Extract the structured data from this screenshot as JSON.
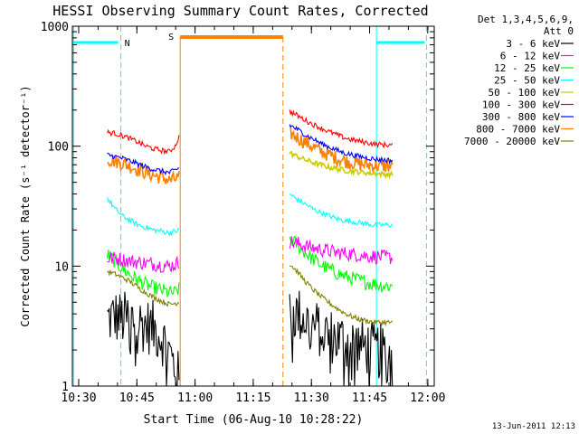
{
  "chart_data": {
    "type": "line",
    "title": "HESSI Observing Summary Count Rates, Corrected",
    "xlabel": "Start Time (06-Aug-10 10:28:22)",
    "ylabel": "Corrected Count Rate (s⁻¹ detector⁻¹)",
    "xaxis_units": "minutes after 10:28:22 UT",
    "xlim": [
      0,
      93.3
    ],
    "ylim": [
      1,
      1000
    ],
    "yscale": "log",
    "x_tick_labels": [
      "10:30",
      "10:45",
      "11:00",
      "11:15",
      "11:30",
      "11:45",
      "12:00"
    ],
    "x_tick_values": [
      1.63,
      16.63,
      31.63,
      46.63,
      61.63,
      76.63,
      91.63
    ],
    "y_tick_labels": [
      "1",
      "10",
      "100",
      "1000"
    ],
    "y_tick_values": [
      1,
      10,
      100,
      1000
    ],
    "legend": {
      "placement": "right",
      "header": "Det 1,3,4,5,6,9,",
      "subheader": "Att 0"
    },
    "footer_date": "13-Jun-2011 12:13",
    "flags": [
      {
        "label": "N",
        "color": "#00ffff",
        "x": [
          12.5,
          91.3
        ]
      },
      {
        "label": "S",
        "color": "#ff8000",
        "x": [
          27.8,
          54.3
        ]
      }
    ],
    "series": [
      {
        "name": "3 - 6 keV",
        "color": "#000000",
        "x": [
          9,
          11,
          13,
          15,
          17,
          19,
          21,
          23,
          25,
          26.5,
          27.5,
          56,
          58,
          60,
          62,
          64,
          66,
          68,
          70,
          72,
          74,
          76,
          78,
          80,
          82.5
        ],
        "y": [
          3.6,
          3.8,
          3.6,
          3.7,
          3.4,
          3.2,
          3.0,
          2.6,
          1.9,
          1.4,
          1.1,
          4.2,
          4.0,
          3.6,
          3.2,
          2.9,
          2.7,
          2.5,
          2.4,
          2.3,
          2.2,
          2.1,
          2.0,
          1.9,
          1.8
        ]
      },
      {
        "name": "6 - 12 keV",
        "color": "#ff00ff",
        "x": [
          9,
          11,
          13,
          15,
          17,
          19,
          21,
          23,
          25,
          26.5,
          27.5,
          56,
          58,
          60,
          62,
          64,
          66,
          68,
          70,
          72,
          74,
          76,
          78,
          80,
          82.5
        ],
        "y": [
          11.5,
          11.6,
          11.3,
          11.0,
          10.8,
          10.6,
          10.4,
          10.2,
          10.0,
          10.3,
          10.8,
          16.0,
          15.5,
          14.8,
          14.2,
          13.8,
          13.4,
          13.0,
          12.8,
          12.6,
          12.4,
          12.2,
          12.0,
          11.9,
          11.8
        ]
      },
      {
        "name": "12 - 25 keV",
        "color": "#00ff00",
        "x": [
          9,
          11,
          13,
          15,
          17,
          19,
          21,
          23,
          25,
          26.5,
          27.5,
          56,
          58,
          60,
          62,
          64,
          66,
          68,
          70,
          72,
          74,
          76,
          78,
          80,
          82.5
        ],
        "y": [
          12.5,
          11.0,
          9.5,
          8.4,
          7.6,
          7.0,
          6.6,
          6.3,
          6.0,
          6.0,
          6.4,
          17.0,
          15.0,
          13.0,
          11.5,
          10.3,
          9.5,
          8.8,
          8.3,
          7.9,
          7.6,
          7.3,
          7.1,
          6.9,
          6.8
        ]
      },
      {
        "name": "25 - 50 keV",
        "color": "#00ffff",
        "x": [
          9,
          11,
          13,
          15,
          17,
          19,
          21,
          23,
          25,
          26.5,
          27.5,
          56,
          58,
          60,
          62,
          64,
          66,
          68,
          70,
          72,
          74,
          76,
          78,
          80,
          82.5
        ],
        "y": [
          37,
          30,
          26,
          24,
          22,
          21,
          20,
          19.5,
          19,
          19.5,
          20,
          40,
          36,
          33,
          30,
          28,
          26.5,
          25,
          24,
          23.5,
          23,
          22.5,
          22,
          22,
          22
        ]
      },
      {
        "name": "50 - 100 keV",
        "color": "#cccc00",
        "x": [
          56,
          58,
          60,
          62,
          64,
          66,
          68,
          70,
          72,
          74,
          76,
          78,
          80,
          82.5
        ],
        "y": [
          88,
          82,
          77,
          73,
          70,
          67,
          65,
          63,
          62,
          61,
          60,
          59,
          58.5,
          58
        ]
      },
      {
        "name": "100 - 300 keV",
        "color": "#ff0000",
        "x": [
          9,
          11,
          13,
          15,
          17,
          19,
          21,
          23,
          25,
          26.5,
          27.5,
          56,
          58,
          60,
          62,
          64,
          66,
          68,
          70,
          72,
          74,
          76,
          78,
          80,
          82.5
        ],
        "y": [
          130,
          128,
          122,
          115,
          108,
          100,
          95,
          92,
          90,
          100,
          120,
          195,
          180,
          165,
          152,
          142,
          133,
          125,
          118,
          113,
          110,
          107,
          104,
          103,
          102
        ]
      },
      {
        "name": "300 - 800 keV",
        "color": "#0000ff",
        "x": [
          9,
          11,
          13,
          15,
          17,
          19,
          21,
          23,
          25,
          26.5,
          27.5,
          56,
          58,
          60,
          62,
          64,
          66,
          68,
          70,
          72,
          74,
          76,
          78,
          80,
          82.5
        ],
        "y": [
          85,
          82,
          79,
          75,
          71,
          67,
          64,
          62,
          60,
          63,
          66,
          150,
          138,
          125,
          115,
          106,
          99,
          93,
          88,
          85,
          82,
          80,
          78,
          77,
          76
        ]
      },
      {
        "name": "800 - 7000 keV",
        "color": "#ff8000",
        "x": [
          9,
          11,
          13,
          15,
          17,
          19,
          21,
          23,
          25,
          26.5,
          27.5,
          56,
          58,
          60,
          62,
          64,
          66,
          68,
          70,
          72,
          74,
          76,
          78,
          80,
          82.5
        ],
        "y": [
          78,
          75,
          72,
          68,
          64,
          60,
          57,
          55,
          52,
          53,
          55,
          130,
          118,
          108,
          99,
          91,
          85,
          80,
          76,
          73,
          71,
          70,
          69,
          68.5,
          68
        ]
      },
      {
        "name": "7000 - 20000 keV",
        "color": "#808000",
        "x": [
          9,
          11,
          13,
          15,
          17,
          19,
          21,
          23,
          25,
          26.5,
          27.5,
          56,
          58,
          60,
          62,
          64,
          66,
          68,
          70,
          72,
          74,
          76,
          78,
          80,
          82.5
        ],
        "y": [
          9.0,
          8.6,
          8.0,
          7.4,
          6.6,
          6.0,
          5.5,
          5.1,
          4.8,
          4.9,
          5.0,
          10.5,
          9.0,
          7.5,
          6.4,
          5.6,
          5.0,
          4.5,
          4.1,
          3.8,
          3.6,
          3.5,
          3.4,
          3.4,
          3.4
        ]
      }
    ]
  }
}
